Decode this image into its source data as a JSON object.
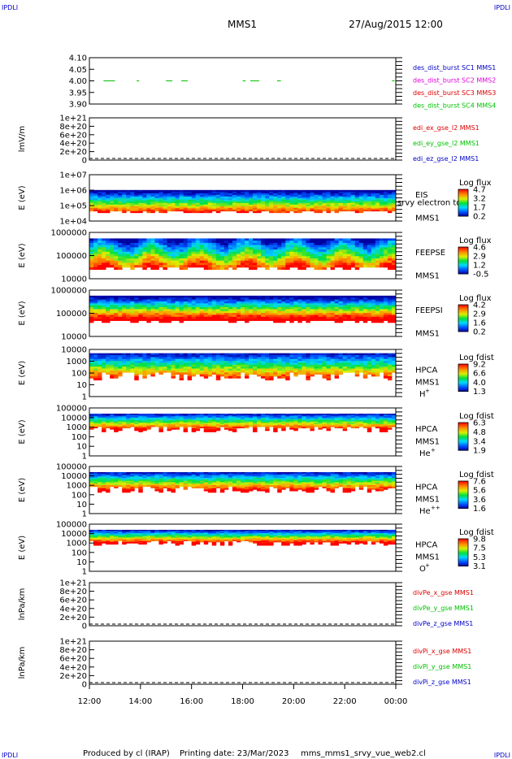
{
  "corner": {
    "tl": "IPDLI",
    "tr": "IPDLI",
    "bl": "IPDLI",
    "br": "IPDLI"
  },
  "header": {
    "mission": "MMS1",
    "datetime": "27/Aug/2015 12:00"
  },
  "footer": {
    "produced": "Produced by cl (IRAP)",
    "printing": "Printing date: 23/Mar/2023",
    "script": "mms_mms1_srvy_vue_web2.cl"
  },
  "time_axis": {
    "labels": [
      "12:00",
      "14:00",
      "16:00",
      "18:00",
      "20:00",
      "22:00",
      "00:00"
    ]
  },
  "colors": {
    "blue": "#0000c8",
    "magenta": "#e000e0",
    "red": "#dd0000",
    "green": "#00c000"
  },
  "chart_data": [
    {
      "type": "scatter",
      "yticks": [
        "4.10",
        "4.05",
        "4.00",
        "3.95",
        "3.90"
      ],
      "ylim": [
        3.9,
        4.1
      ],
      "legend": [
        {
          "text": "des_dist_burst SC1 MMS1",
          "color": "#0000c8"
        },
        {
          "text": "des_dist_burst SC2 MMS2",
          "color": "#e000e0"
        },
        {
          "text": "des_dist_burst SC3 MMS3",
          "color": "#dd0000"
        },
        {
          "text": "des_dist_burst SC4 MMS4",
          "color": "#00c000"
        }
      ],
      "segments_hours": [
        [
          12.55,
          13.0
        ],
        [
          13.85,
          13.95
        ],
        [
          15.0,
          15.25
        ],
        [
          15.6,
          15.85
        ],
        [
          18.0,
          18.12
        ],
        [
          18.3,
          18.65
        ],
        [
          19.35,
          19.5
        ],
        [
          23.85,
          23.95
        ]
      ],
      "value": 4.0
    },
    {
      "type": "line",
      "ylabel": "lmV/m",
      "yticks": [
        "1e+21",
        "8e+20",
        "6e+20",
        "4e+20",
        "2e+20",
        "0"
      ],
      "legend": [
        {
          "text": "edi_ex_gse_l2 MMS1",
          "color": "#dd0000"
        },
        {
          "text": "edi_ey_gse_l2 MMS1",
          "color": "#00c000"
        },
        {
          "text": "edi_ez_gse_l2 MMS1",
          "color": "#0000c8"
        }
      ]
    },
    {
      "type": "heatmap",
      "ylabel": "E (eV)",
      "yticks": [
        "1e+07",
        "1e+06",
        "1e+05",
        "1e+04"
      ],
      "instrument": "EIS",
      "extra": "srvy electron to",
      "sat": "MMS1",
      "cb_title": "Log flux",
      "cb_ticks": [
        "4.7",
        "3.2",
        "1.7",
        "0.2"
      ]
    },
    {
      "type": "heatmap",
      "ylabel": "E (eV)",
      "yticks": [
        "1000000",
        "100000",
        "10000"
      ],
      "instrument": "FEEPSE",
      "sat": "MMS1",
      "cb_title": "Log flux",
      "cb_ticks": [
        "4.6",
        "2.9",
        "1.2",
        "-0.5"
      ]
    },
    {
      "type": "heatmap",
      "ylabel": "E (eV)",
      "yticks": [
        "1000000",
        "100000",
        "10000"
      ],
      "instrument": "FEEPSI",
      "sat": "MMS1",
      "cb_title": "Log flux",
      "cb_ticks": [
        "4.2",
        "2.9",
        "1.6",
        "0.2"
      ]
    },
    {
      "type": "heatmap",
      "ylabel": "E (eV)",
      "yticks": [
        "10000",
        "1000",
        "100",
        "10",
        "1"
      ],
      "instrument": "HPCA",
      "sat": "MMS1",
      "species": "H",
      "charge": "+",
      "cb_title": "Log fdist",
      "cb_ticks": [
        "9.2",
        "6.6",
        "4.0",
        "1.3"
      ]
    },
    {
      "type": "heatmap",
      "ylabel": "E (eV)",
      "yticks": [
        "100000",
        "10000",
        "1000",
        "100",
        "10",
        "1"
      ],
      "instrument": "HPCA",
      "sat": "MMS1",
      "species": "He",
      "charge": "+",
      "cb_title": "Log fdist",
      "cb_ticks": [
        "6.3",
        "4.8",
        "3.4",
        "1.9"
      ]
    },
    {
      "type": "heatmap",
      "ylabel": "E (eV)",
      "yticks": [
        "100000",
        "10000",
        "1000",
        "100",
        "10",
        "1"
      ],
      "instrument": "HPCA",
      "sat": "MMS1",
      "species": "He",
      "charge": "++",
      "cb_title": "Log fdist",
      "cb_ticks": [
        "7.6",
        "5.6",
        "3.6",
        "1.6"
      ]
    },
    {
      "type": "heatmap",
      "ylabel": "E (eV)",
      "yticks": [
        "100000",
        "10000",
        "1000",
        "100",
        "10",
        "1"
      ],
      "instrument": "HPCA",
      "sat": "MMS1",
      "species": "O",
      "charge": "+",
      "cb_title": "Log fdist",
      "cb_ticks": [
        "9.8",
        "7.5",
        "5.3",
        "3.1"
      ]
    },
    {
      "type": "line",
      "ylabel": "lnPa/km",
      "yticks": [
        "1e+21",
        "8e+20",
        "6e+20",
        "4e+20",
        "2e+20",
        "0"
      ],
      "legend": [
        {
          "text": "divPe_x_gse MMS1",
          "color": "#dd0000"
        },
        {
          "text": "divPe_y_gse MMS1",
          "color": "#00c000"
        },
        {
          "text": "divPe_z_gse MMS1",
          "color": "#0000c8"
        }
      ]
    },
    {
      "type": "line",
      "ylabel": "lnPa/km",
      "yticks": [
        "1e+21",
        "8e+20",
        "6e+20",
        "4e+20",
        "2e+20",
        "0"
      ],
      "legend": [
        {
          "text": "divPi_x_gse MMS1",
          "color": "#dd0000"
        },
        {
          "text": "divPi_y_gse MMS1",
          "color": "#00c000"
        },
        {
          "text": "divPi_z_gse MMS1",
          "color": "#0000c8"
        }
      ]
    }
  ]
}
